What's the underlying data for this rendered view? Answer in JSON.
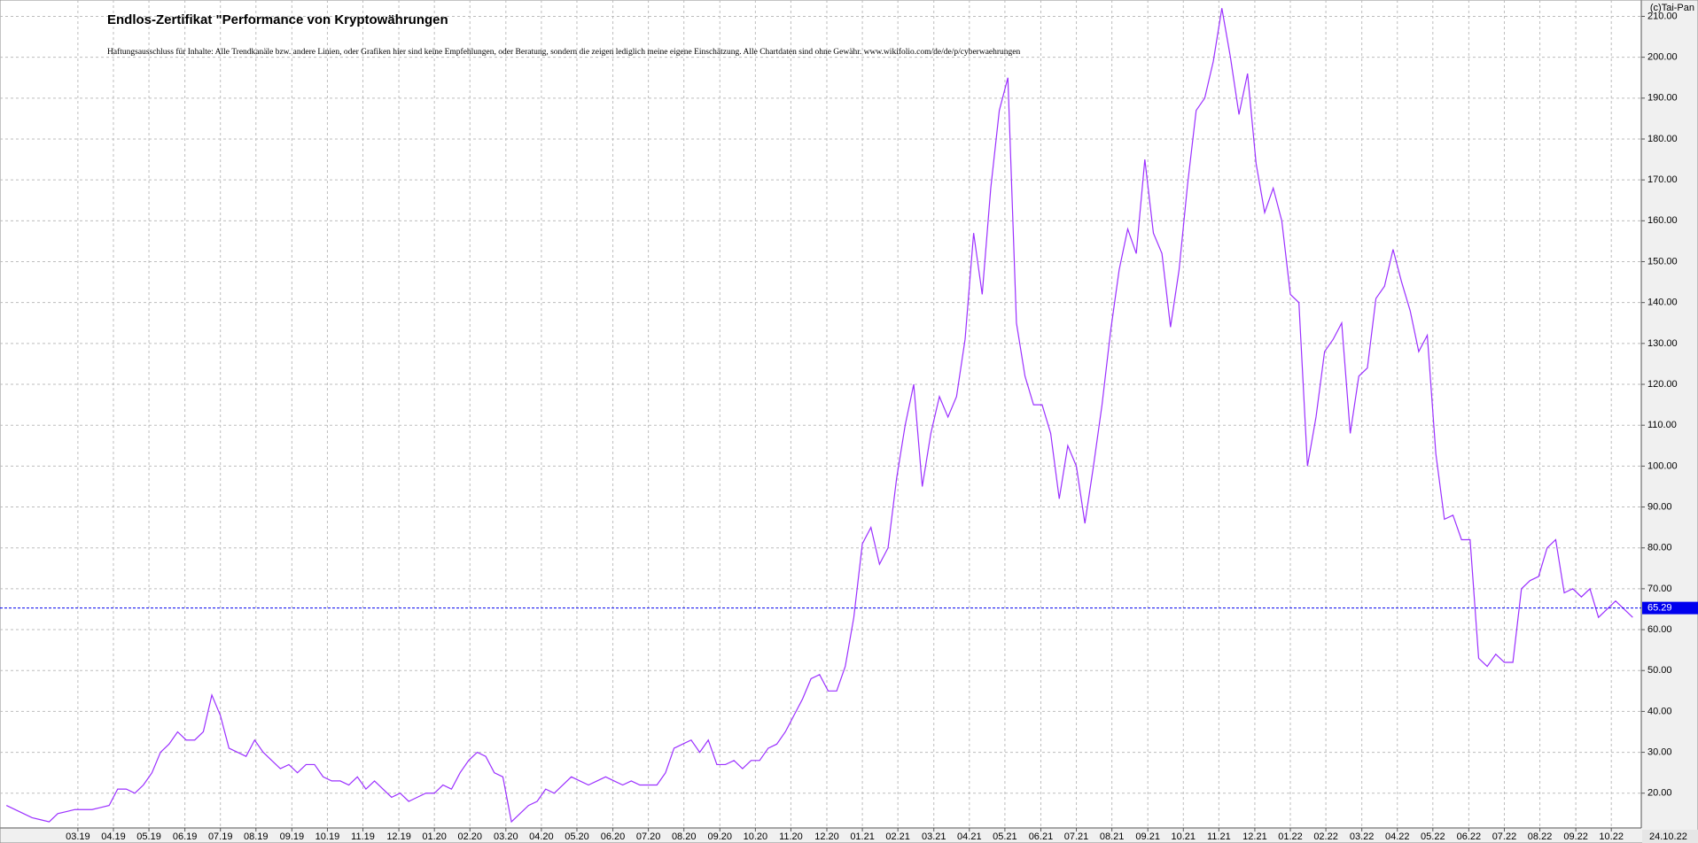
{
  "chart_data": {
    "type": "line",
    "title": "Endlos-Zertifikat \"Performance von Kryptowährungen",
    "subtitle": "Haftungsausschluss für Inhalte: Alle Trendkanäle bzw. andere Linien, oder Grafiken hier sind keine Empfehlungen, oder Beratung, sondern die zeigen lediglich meine eigene Einschätzung. Alle Chartdaten sind ohne Gewähr.  www.wikifolio.com/de/de/p/cyberwaehrungen",
    "copyright": "(c)Tai-Pan",
    "last_date": "24.10.22",
    "last_value": 65.29,
    "last_value_color": "#0000ee",
    "grid": true,
    "xlim": [
      2018.985,
      2022.82
    ],
    "ylim": [
      11.5,
      214
    ],
    "xticks": [
      {
        "value": 2019.167,
        "label": "03.19"
      },
      {
        "value": 2019.25,
        "label": "04.19"
      },
      {
        "value": 2019.333,
        "label": "05.19"
      },
      {
        "value": 2019.417,
        "label": "06.19"
      },
      {
        "value": 2019.5,
        "label": "07.19"
      },
      {
        "value": 2019.583,
        "label": "08.19"
      },
      {
        "value": 2019.667,
        "label": "09.19"
      },
      {
        "value": 2019.75,
        "label": "10.19"
      },
      {
        "value": 2019.833,
        "label": "11.19"
      },
      {
        "value": 2019.917,
        "label": "12.19"
      },
      {
        "value": 2020.0,
        "label": "01.20"
      },
      {
        "value": 2020.083,
        "label": "02.20"
      },
      {
        "value": 2020.167,
        "label": "03.20"
      },
      {
        "value": 2020.25,
        "label": "04.20"
      },
      {
        "value": 2020.333,
        "label": "05.20"
      },
      {
        "value": 2020.417,
        "label": "06.20"
      },
      {
        "value": 2020.5,
        "label": "07.20"
      },
      {
        "value": 2020.583,
        "label": "08.20"
      },
      {
        "value": 2020.667,
        "label": "09.20"
      },
      {
        "value": 2020.75,
        "label": "10.20"
      },
      {
        "value": 2020.833,
        "label": "11.20"
      },
      {
        "value": 2020.917,
        "label": "12.20"
      },
      {
        "value": 2021.0,
        "label": "01.21"
      },
      {
        "value": 2021.083,
        "label": "02.21"
      },
      {
        "value": 2021.167,
        "label": "03.21"
      },
      {
        "value": 2021.25,
        "label": "04.21"
      },
      {
        "value": 2021.333,
        "label": "05.21"
      },
      {
        "value": 2021.417,
        "label": "06.21"
      },
      {
        "value": 2021.5,
        "label": "07.21"
      },
      {
        "value": 2021.583,
        "label": "08.21"
      },
      {
        "value": 2021.667,
        "label": "09.21"
      },
      {
        "value": 2021.75,
        "label": "10.21"
      },
      {
        "value": 2021.833,
        "label": "11.21"
      },
      {
        "value": 2021.917,
        "label": "12.21"
      },
      {
        "value": 2022.0,
        "label": "01.22"
      },
      {
        "value": 2022.083,
        "label": "02.22"
      },
      {
        "value": 2022.167,
        "label": "03.22"
      },
      {
        "value": 2022.25,
        "label": "04.22"
      },
      {
        "value": 2022.333,
        "label": "05.22"
      },
      {
        "value": 2022.417,
        "label": "06.22"
      },
      {
        "value": 2022.5,
        "label": "07.22"
      },
      {
        "value": 2022.583,
        "label": "08.22"
      },
      {
        "value": 2022.667,
        "label": "09.22"
      },
      {
        "value": 2022.75,
        "label": "10.22"
      }
    ],
    "yticks": [
      {
        "value": 20,
        "label": "20.00"
      },
      {
        "value": 30,
        "label": "30.00"
      },
      {
        "value": 40,
        "label": "40.00"
      },
      {
        "value": 50,
        "label": "50.00"
      },
      {
        "value": 60,
        "label": "60.00"
      },
      {
        "value": 70,
        "label": "70.00"
      },
      {
        "value": 80,
        "label": "80.00"
      },
      {
        "value": 90,
        "label": "90.00"
      },
      {
        "value": 100,
        "label": "100.00"
      },
      {
        "value": 110,
        "label": "110.00"
      },
      {
        "value": 120,
        "label": "120.00"
      },
      {
        "value": 130,
        "label": "130.00"
      },
      {
        "value": 140,
        "label": "140.00"
      },
      {
        "value": 150,
        "label": "150.00"
      },
      {
        "value": 160,
        "label": "160.00"
      },
      {
        "value": 170,
        "label": "170.00"
      },
      {
        "value": 180,
        "label": "180.00"
      },
      {
        "value": 190,
        "label": "190.00"
      },
      {
        "value": 200,
        "label": "200.00"
      },
      {
        "value": 210,
        "label": "210.00"
      }
    ],
    "x": [
      2019.0,
      2019.02,
      2019.04,
      2019.06,
      2019.08,
      2019.1,
      2019.12,
      2019.14,
      2019.16,
      2019.18,
      2019.2,
      2019.22,
      2019.24,
      2019.26,
      2019.28,
      2019.3,
      2019.32,
      2019.34,
      2019.36,
      2019.38,
      2019.4,
      2019.42,
      2019.44,
      2019.46,
      2019.48,
      2019.5,
      2019.52,
      2019.54,
      2019.56,
      2019.58,
      2019.6,
      2019.62,
      2019.64,
      2019.66,
      2019.68,
      2019.7,
      2019.72,
      2019.74,
      2019.76,
      2019.78,
      2019.8,
      2019.82,
      2019.84,
      2019.86,
      2019.88,
      2019.9,
      2019.92,
      2019.94,
      2019.96,
      2019.98,
      2020.0,
      2020.02,
      2020.04,
      2020.06,
      2020.08,
      2020.1,
      2020.12,
      2020.14,
      2020.16,
      2020.18,
      2020.2,
      2020.22,
      2020.24,
      2020.26,
      2020.28,
      2020.3,
      2020.32,
      2020.34,
      2020.36,
      2020.38,
      2020.4,
      2020.42,
      2020.44,
      2020.46,
      2020.48,
      2020.5,
      2020.52,
      2020.54,
      2020.56,
      2020.58,
      2020.6,
      2020.62,
      2020.64,
      2020.66,
      2020.68,
      2020.7,
      2020.72,
      2020.74,
      2020.76,
      2020.78,
      2020.8,
      2020.82,
      2020.84,
      2020.86,
      2020.88,
      2020.9,
      2020.92,
      2020.94,
      2020.96,
      2020.98,
      2021.0,
      2021.02,
      2021.04,
      2021.06,
      2021.08,
      2021.1,
      2021.12,
      2021.14,
      2021.16,
      2021.18,
      2021.2,
      2021.22,
      2021.24,
      2021.26,
      2021.28,
      2021.3,
      2021.32,
      2021.34,
      2021.36,
      2021.38,
      2021.4,
      2021.42,
      2021.44,
      2021.46,
      2021.48,
      2021.5,
      2021.52,
      2021.54,
      2021.56,
      2021.58,
      2021.6,
      2021.62,
      2021.64,
      2021.66,
      2021.68,
      2021.7,
      2021.72,
      2021.74,
      2021.76,
      2021.78,
      2021.8,
      2021.82,
      2021.84,
      2021.86,
      2021.88,
      2021.9,
      2021.92,
      2021.94,
      2021.96,
      2021.98,
      2022.0,
      2022.02,
      2022.04,
      2022.06,
      2022.08,
      2022.1,
      2022.12,
      2022.14,
      2022.16,
      2022.18,
      2022.2,
      2022.22,
      2022.24,
      2022.26,
      2022.28,
      2022.3,
      2022.32,
      2022.34,
      2022.36,
      2022.38,
      2022.4,
      2022.42,
      2022.44,
      2022.46,
      2022.48,
      2022.5,
      2022.52,
      2022.54,
      2022.56,
      2022.58,
      2022.6,
      2022.62,
      2022.64,
      2022.66,
      2022.68,
      2022.7,
      2022.72,
      2022.74,
      2022.76,
      2022.78,
      2022.8
    ],
    "series": [
      {
        "color": "#9b30ff",
        "values": [
          17,
          16,
          15,
          14,
          13.5,
          13,
          15,
          15.5,
          16,
          16,
          16,
          16.5,
          17,
          21,
          21,
          20,
          22,
          25,
          30,
          32,
          35,
          33,
          33,
          35,
          44,
          39,
          31,
          30,
          29,
          33,
          30,
          28,
          26,
          27,
          25,
          27,
          27,
          24,
          23,
          23,
          22,
          24,
          21,
          23,
          21,
          19,
          20,
          18,
          19,
          20,
          20,
          22,
          21,
          25,
          28,
          30,
          29,
          25,
          24,
          13,
          15,
          17,
          18,
          21,
          20,
          22,
          24,
          23,
          22,
          23,
          24,
          23,
          22,
          23,
          22,
          22,
          22,
          25,
          31,
          32,
          33,
          30,
          33,
          27,
          27,
          28,
          26,
          28,
          28,
          31,
          32,
          35,
          39,
          43,
          48,
          49,
          45,
          45,
          51,
          63,
          81,
          85,
          76,
          80,
          97,
          110,
          120,
          95,
          108,
          117,
          112,
          117,
          131,
          157,
          142,
          168,
          187,
          195,
          135,
          122,
          115,
          115,
          108,
          92,
          105,
          100,
          86,
          100,
          115,
          133,
          148,
          158,
          152,
          175,
          157,
          152,
          134,
          148,
          169,
          187,
          190,
          199,
          212,
          200,
          186,
          196,
          174,
          162,
          168,
          160,
          142,
          140,
          100,
          112,
          128,
          131,
          135,
          108,
          122,
          124,
          141,
          144,
          153,
          145,
          138,
          128,
          132,
          103,
          87,
          88,
          82,
          82,
          53,
          51,
          54,
          52,
          52,
          70,
          72,
          73,
          80,
          82,
          69,
          70,
          68,
          70,
          63,
          65,
          67,
          65,
          63
        ]
      }
    ]
  }
}
